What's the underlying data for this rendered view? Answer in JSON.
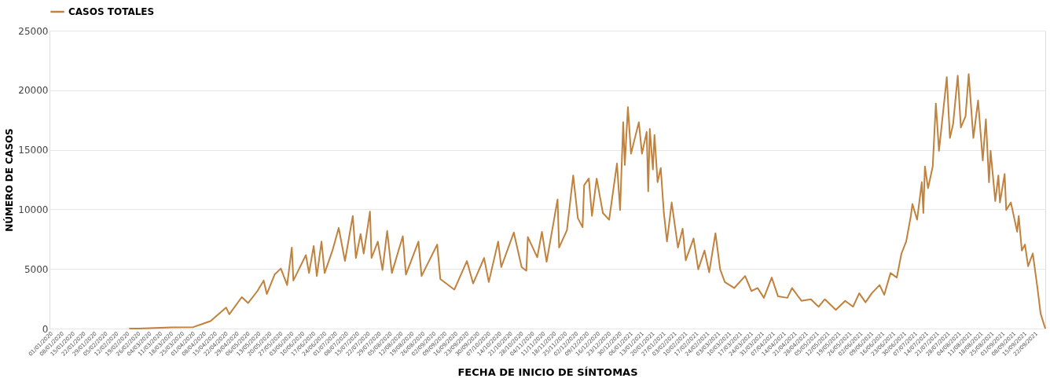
{
  "chart_data": {
    "type": "line",
    "xlabel": "FECHA DE INICIO DE SÍNTOMAS",
    "ylabel": "NÚMERO DE CASOS",
    "legend": "top",
    "grid": "y",
    "marker": "none",
    "line_style": "solid",
    "ylim": [
      0,
      25000
    ],
    "yticks": [
      0,
      5000,
      10000,
      15000,
      20000,
      25000
    ],
    "xlim": [
      "2020-01-01",
      "2021-09-29"
    ],
    "xticks": [
      {
        "value": "2020-01-01",
        "label": "01/01/2020"
      },
      {
        "value": "2020-01-08",
        "label": "08/01/2020"
      },
      {
        "value": "2020-01-15",
        "label": "15/01/2020"
      },
      {
        "value": "2020-01-22",
        "label": "22/01/2020"
      },
      {
        "value": "2020-01-29",
        "label": "29/01/2020"
      },
      {
        "value": "2020-02-05",
        "label": "05/02/2020"
      },
      {
        "value": "2020-02-12",
        "label": "12/02/2020"
      },
      {
        "value": "2020-02-19",
        "label": "19/02/2020"
      },
      {
        "value": "2020-02-26",
        "label": "26/02/2020"
      },
      {
        "value": "2020-03-04",
        "label": "04/03/2020"
      },
      {
        "value": "2020-03-11",
        "label": "11/03/2020"
      },
      {
        "value": "2020-03-18",
        "label": "18/03/2020"
      },
      {
        "value": "2020-03-25",
        "label": "25/03/2020"
      },
      {
        "value": "2020-04-01",
        "label": "01/04/2020"
      },
      {
        "value": "2020-04-08",
        "label": "08/04/2020"
      },
      {
        "value": "2020-04-15",
        "label": "15/04/2020"
      },
      {
        "value": "2020-04-22",
        "label": "22/04/2020"
      },
      {
        "value": "2020-04-29",
        "label": "29/04/2020"
      },
      {
        "value": "2020-05-06",
        "label": "06/05/2020"
      },
      {
        "value": "2020-05-13",
        "label": "13/05/2020"
      },
      {
        "value": "2020-05-20",
        "label": "20/05/2020"
      },
      {
        "value": "2020-05-27",
        "label": "27/05/2020"
      },
      {
        "value": "2020-06-03",
        "label": "03/06/2020"
      },
      {
        "value": "2020-06-10",
        "label": "10/06/2020"
      },
      {
        "value": "2020-06-17",
        "label": "17/06/2020"
      },
      {
        "value": "2020-06-24",
        "label": "24/06/2020"
      },
      {
        "value": "2020-07-01",
        "label": "01/07/2020"
      },
      {
        "value": "2020-07-08",
        "label": "08/07/2020"
      },
      {
        "value": "2020-07-15",
        "label": "15/07/2020"
      },
      {
        "value": "2020-07-22",
        "label": "22/07/2020"
      },
      {
        "value": "2020-07-29",
        "label": "29/07/2020"
      },
      {
        "value": "2020-08-05",
        "label": "05/08/2020"
      },
      {
        "value": "2020-08-12",
        "label": "12/08/2020"
      },
      {
        "value": "2020-08-19",
        "label": "19/08/2020"
      },
      {
        "value": "2020-08-26",
        "label": "26/08/2020"
      },
      {
        "value": "2020-09-02",
        "label": "02/09/2020"
      },
      {
        "value": "2020-09-09",
        "label": "09/09/2020"
      },
      {
        "value": "2020-09-16",
        "label": "16/09/2020"
      },
      {
        "value": "2020-09-23",
        "label": "23/09/2020"
      },
      {
        "value": "2020-09-30",
        "label": "30/09/2020"
      },
      {
        "value": "2020-10-07",
        "label": "07/10/2020"
      },
      {
        "value": "2020-10-14",
        "label": "14/10/2020"
      },
      {
        "value": "2020-10-21",
        "label": "21/10/2020"
      },
      {
        "value": "2020-10-28",
        "label": "28/10/2020"
      },
      {
        "value": "2020-11-04",
        "label": "04/11/2020"
      },
      {
        "value": "2020-11-11",
        "label": "11/11/2020"
      },
      {
        "value": "2020-11-18",
        "label": "18/11/2020"
      },
      {
        "value": "2020-11-25",
        "label": "25/11/2020"
      },
      {
        "value": "2020-12-02",
        "label": "02/12/2020"
      },
      {
        "value": "2020-12-09",
        "label": "09/12/2020"
      },
      {
        "value": "2020-12-16",
        "label": "16/12/2020"
      },
      {
        "value": "2020-12-23",
        "label": "23/12/2020"
      },
      {
        "value": "2020-12-30",
        "label": "30/12/2020"
      },
      {
        "value": "2021-01-06",
        "label": "06/01/2021"
      },
      {
        "value": "2021-01-13",
        "label": "13/01/2021"
      },
      {
        "value": "2021-01-20",
        "label": "20/01/2021"
      },
      {
        "value": "2021-01-27",
        "label": "27/01/2021"
      },
      {
        "value": "2021-02-03",
        "label": "03/02/2021"
      },
      {
        "value": "2021-02-10",
        "label": "10/02/2021"
      },
      {
        "value": "2021-02-17",
        "label": "17/02/2021"
      },
      {
        "value": "2021-02-24",
        "label": "24/02/2021"
      },
      {
        "value": "2021-03-03",
        "label": "03/03/2021"
      },
      {
        "value": "2021-03-10",
        "label": "10/03/2021"
      },
      {
        "value": "2021-03-17",
        "label": "17/03/2021"
      },
      {
        "value": "2021-03-24",
        "label": "24/03/2021"
      },
      {
        "value": "2021-03-31",
        "label": "31/03/2021"
      },
      {
        "value": "2021-04-07",
        "label": "07/04/2021"
      },
      {
        "value": "2021-04-14",
        "label": "14/04/2021"
      },
      {
        "value": "2021-04-21",
        "label": "21/04/2021"
      },
      {
        "value": "2021-04-28",
        "label": "28/04/2021"
      },
      {
        "value": "2021-05-05",
        "label": "05/05/2021"
      },
      {
        "value": "2021-05-12",
        "label": "12/05/2021"
      },
      {
        "value": "2021-05-19",
        "label": "19/05/2021"
      },
      {
        "value": "2021-05-26",
        "label": "26/05/2021"
      },
      {
        "value": "2021-06-02",
        "label": "02/06/2021"
      },
      {
        "value": "2021-06-09",
        "label": "09/06/2021"
      },
      {
        "value": "2021-06-16",
        "label": "16/06/2021"
      },
      {
        "value": "2021-06-23",
        "label": "23/06/2021"
      },
      {
        "value": "2021-06-30",
        "label": "30/06/2021"
      },
      {
        "value": "2021-07-07",
        "label": "07/07/2021"
      },
      {
        "value": "2021-07-14",
        "label": "14/07/2021"
      },
      {
        "value": "2021-07-21",
        "label": "21/07/2021"
      },
      {
        "value": "2021-07-28",
        "label": "28/07/2021"
      },
      {
        "value": "2021-08-04",
        "label": "04/08/2021"
      },
      {
        "value": "2021-08-11",
        "label": "11/08/2021"
      },
      {
        "value": "2021-08-18",
        "label": "18/08/2021"
      },
      {
        "value": "2021-08-25",
        "label": "25/08/2021"
      },
      {
        "value": "2021-09-01",
        "label": "01/09/2021"
      },
      {
        "value": "2021-09-08",
        "label": "08/09/2021"
      },
      {
        "value": "2021-09-15",
        "label": "15/09/2021"
      },
      {
        "value": "2021-09-22",
        "label": "22/09/2021"
      }
    ],
    "series": [
      {
        "name": "CASOS TOTALES",
        "color": "#c0823c",
        "x": [
          "2020-02-21",
          "2020-02-27",
          "2020-03-19",
          "2020-04-02",
          "2020-04-13",
          "2020-04-23",
          "2020-04-25",
          "2020-05-03",
          "2020-05-07",
          "2020-05-13",
          "2020-05-17",
          "2020-05-19",
          "2020-05-24",
          "2020-05-28",
          "2020-06-01",
          "2020-06-04",
          "2020-06-05",
          "2020-06-13",
          "2020-06-15",
          "2020-06-18",
          "2020-06-20",
          "2020-06-23",
          "2020-06-25",
          "2020-06-30",
          "2020-07-04",
          "2020-07-08",
          "2020-07-13",
          "2020-07-15",
          "2020-07-18",
          "2020-07-20",
          "2020-07-24",
          "2020-07-25",
          "2020-07-29",
          "2020-08-01",
          "2020-08-04",
          "2020-08-07",
          "2020-08-14",
          "2020-08-16",
          "2020-08-24",
          "2020-08-26",
          "2020-09-05",
          "2020-09-07",
          "2020-09-16",
          "2020-09-24",
          "2020-09-28",
          "2020-10-05",
          "2020-10-08",
          "2020-10-14",
          "2020-10-16",
          "2020-10-24",
          "2020-10-29",
          "2020-11-01",
          "2020-11-02",
          "2020-11-08",
          "2020-11-11",
          "2020-11-14",
          "2020-11-21",
          "2020-11-22",
          "2020-11-27",
          "2020-12-01",
          "2020-12-04",
          "2020-12-07",
          "2020-12-08",
          "2020-12-11",
          "2020-12-13",
          "2020-12-16",
          "2020-12-20",
          "2020-12-24",
          "2020-12-29",
          "2020-12-31",
          "2021-01-02",
          "2021-01-03",
          "2021-01-05",
          "2021-01-07",
          "2021-01-09",
          "2021-01-12",
          "2021-01-14",
          "2021-01-17",
          "2021-01-18",
          "2021-01-19",
          "2021-01-21",
          "2021-01-22",
          "2021-01-24",
          "2021-01-26",
          "2021-01-28",
          "2021-01-30",
          "2021-02-02",
          "2021-02-06",
          "2021-02-09",
          "2021-02-11",
          "2021-02-16",
          "2021-02-19",
          "2021-02-23",
          "2021-02-26",
          "2021-03-02",
          "2021-03-05",
          "2021-03-08",
          "2021-03-14",
          "2021-03-21",
          "2021-03-25",
          "2021-03-29",
          "2021-04-02",
          "2021-04-07",
          "2021-04-11",
          "2021-04-17",
          "2021-04-20",
          "2021-04-26",
          "2021-05-02",
          "2021-05-07",
          "2021-05-11",
          "2021-05-18",
          "2021-05-24",
          "2021-05-29",
          "2021-06-02",
          "2021-06-06",
          "2021-06-10",
          "2021-06-15",
          "2021-06-18",
          "2021-06-22",
          "2021-06-26",
          "2021-06-29",
          "2021-07-02",
          "2021-07-05",
          "2021-07-06",
          "2021-07-09",
          "2021-07-12",
          "2021-07-13",
          "2021-07-14",
          "2021-07-16",
          "2021-07-19",
          "2021-07-21",
          "2021-07-23",
          "2021-07-28",
          "2021-07-30",
          "2021-08-01",
          "2021-08-04",
          "2021-08-06",
          "2021-08-09",
          "2021-08-11",
          "2021-08-14",
          "2021-08-17",
          "2021-08-20",
          "2021-08-22",
          "2021-08-24",
          "2021-08-25",
          "2021-08-28",
          "2021-08-30",
          "2021-08-31",
          "2021-09-03",
          "2021-09-04",
          "2021-09-07",
          "2021-09-11",
          "2021-09-12",
          "2021-09-14",
          "2021-09-16",
          "2021-09-18",
          "2021-09-21",
          "2021-09-24",
          "2021-09-26",
          "2021-09-29"
        ],
        "values": [
          0,
          0,
          100,
          120,
          630,
          1760,
          1200,
          2640,
          2140,
          3150,
          4030,
          2900,
          4530,
          5040,
          3650,
          6800,
          4030,
          6170,
          4660,
          6930,
          4410,
          7300,
          4660,
          6550,
          8440,
          5670,
          9450,
          5920,
          7930,
          6300,
          9820,
          5920,
          7300,
          4910,
          8190,
          4660,
          7750,
          4530,
          7300,
          4410,
          7050,
          4160,
          3270,
          5670,
          3780,
          5920,
          3900,
          7300,
          5160,
          8060,
          5160,
          4850,
          7680,
          5980,
          8120,
          5600,
          10830,
          6800,
          8250,
          12850,
          9260,
          8500,
          12030,
          12590,
          9450,
          12590,
          9700,
          9130,
          13850,
          9950,
          17320,
          13730,
          18580,
          14670,
          15740,
          17320,
          14670,
          16500,
          11520,
          16750,
          13350,
          16250,
          12280,
          13480,
          9700,
          7300,
          10580,
          6800,
          8380,
          5730,
          7560,
          4970,
          6550,
          4720,
          8000,
          4970,
          3900,
          3400,
          4410,
          3150,
          3400,
          2580,
          4280,
          2710,
          2580,
          3400,
          2330,
          2460,
          1830,
          2460,
          1570,
          2330,
          1830,
          2960,
          2200,
          2960,
          3650,
          2830,
          4660,
          4280,
          6300,
          7300,
          9450,
          10450,
          9130,
          12280,
          9700,
          13600,
          11780,
          13600,
          18890,
          14920,
          21100,
          15990,
          17130,
          21220,
          16880,
          17820,
          21350,
          15990,
          19140,
          14100,
          17570,
          12280,
          14920,
          10700,
          12850,
          10580,
          12970,
          9950,
          10580,
          8120,
          9450,
          6550,
          7050,
          5230,
          6300,
          3400,
          1260,
          0
        ]
      }
    ]
  }
}
